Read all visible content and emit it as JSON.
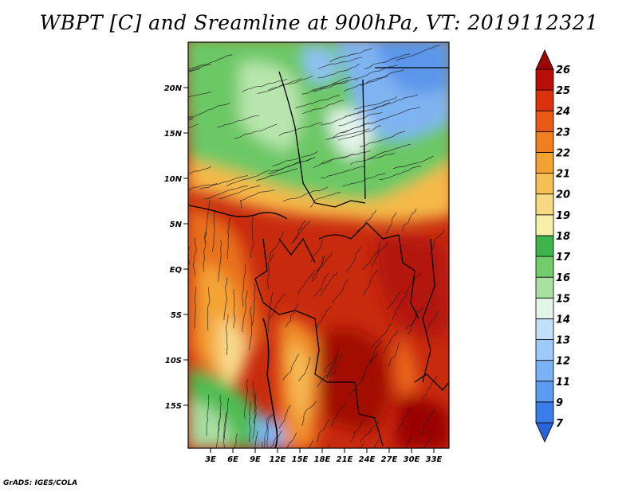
{
  "title": "WBPT [C] and Sreamline at 900hPa, VT: 2019112321",
  "footer": "GrADS: IGES/COLA",
  "map": {
    "lat_labels": [
      "20N",
      "15N",
      "10N",
      "5N",
      "EQ",
      "5S",
      "10S",
      "15S"
    ],
    "lon_labels": [
      "3E",
      "6E",
      "9E",
      "12E",
      "15E",
      "18E",
      "21E",
      "24E",
      "27E",
      "30E",
      "33E"
    ]
  },
  "colorbar": {
    "levels": [
      "7",
      "9",
      "11",
      "12",
      "13",
      "14",
      "15",
      "16",
      "17",
      "18",
      "19",
      "20",
      "21",
      "22",
      "23",
      "24",
      "25",
      "26"
    ],
    "colors": [
      "#2a63d8",
      "#3a7de8",
      "#5b9bf0",
      "#7ab3f4",
      "#9ecaf7",
      "#c2dffa",
      "#e2f5e6",
      "#a9e2a0",
      "#73cc6c",
      "#3fb44a",
      "#f7f0a8",
      "#f6d982",
      "#f5bf55",
      "#f2a234",
      "#ef7f20",
      "#e85a16",
      "#d9330e",
      "#b70f07",
      "#9a0505"
    ]
  }
}
